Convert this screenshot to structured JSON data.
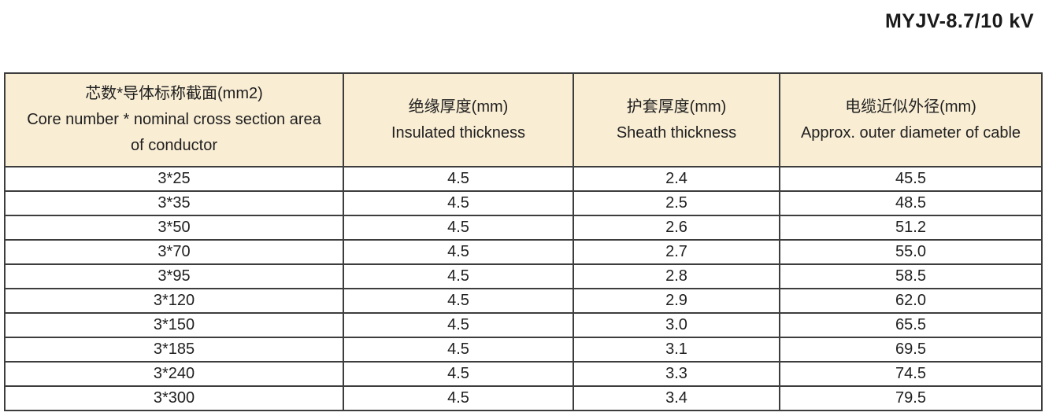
{
  "page": {
    "title": "MYJV-8.7/10 kV"
  },
  "colors": {
    "header-bg": "#f9edd4",
    "border": "#3d3d3d",
    "text": "#1f1f1f",
    "page-bg": "#ffffff"
  },
  "table": {
    "column_keys": [
      "core-size",
      "insulation-thickness",
      "sheath-thickness",
      "outer-diameter"
    ],
    "header": [
      {
        "lines": [
          "芯数*导体标称截面(mm2)",
          "Core number * nominal cross section area",
          "of conductor"
        ]
      },
      {
        "lines": [
          "绝缘厚度(mm)",
          "Insulated thickness"
        ]
      },
      {
        "lines": [
          "护套厚度(mm)",
          "Sheath thickness"
        ]
      },
      {
        "lines": [
          "电缆近似外径(mm)",
          "Approx. outer diameter of cable"
        ]
      }
    ],
    "rows": [
      [
        "3*25",
        "4.5",
        "2.4",
        "45.5"
      ],
      [
        "3*35",
        "4.5",
        "2.5",
        "48.5"
      ],
      [
        "3*50",
        "4.5",
        "2.6",
        "51.2"
      ],
      [
        "3*70",
        "4.5",
        "2.7",
        "55.0"
      ],
      [
        "3*95",
        "4.5",
        "2.8",
        "58.5"
      ],
      [
        "3*120",
        "4.5",
        "2.9",
        "62.0"
      ],
      [
        "3*150",
        "4.5",
        "3.0",
        "65.5"
      ],
      [
        "3*185",
        "4.5",
        "3.1",
        "69.5"
      ],
      [
        "3*240",
        "4.5",
        "3.3",
        "74.5"
      ],
      [
        "3*300",
        "4.5",
        "3.4",
        "79.5"
      ]
    ]
  }
}
